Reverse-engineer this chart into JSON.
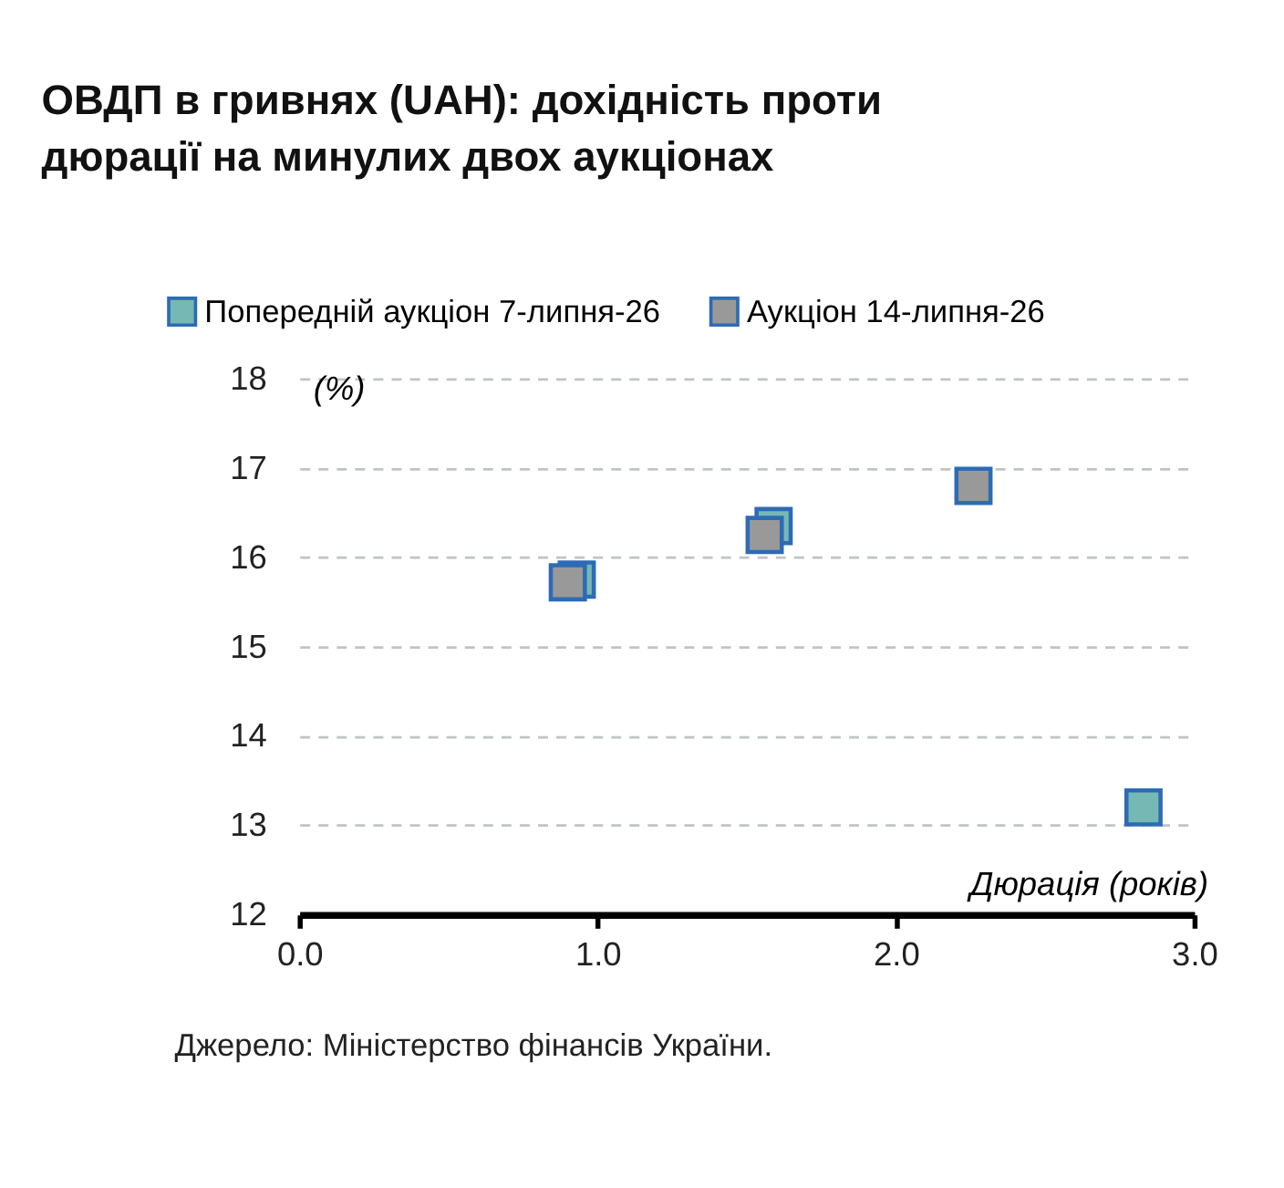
{
  "chart_data": {
    "type": "scatter",
    "title": [
      "ОВДП в гривнях (UAH): дохідність проти",
      "дюрації на минулих двох аукціонах"
    ],
    "xlabel": "Дюрація (років)",
    "ylabel": "(%)",
    "series": [
      {
        "name": "Попередній аукціон 7-липня-26",
        "color": "#76b8b4",
        "x": [
          0.93,
          1.59,
          2.83
        ],
        "values": [
          15.75,
          16.35,
          13.2
        ]
      },
      {
        "name": "Аукціон 14-липня-26",
        "color": "#999999",
        "x": [
          0.9,
          1.56,
          2.26
        ],
        "values": [
          15.72,
          16.25,
          16.8
        ]
      }
    ],
    "xlim": [
      0,
      3
    ],
    "xticks": [
      {
        "value": 0,
        "label": "0.0"
      },
      {
        "value": 1,
        "label": "1.0"
      },
      {
        "value": 2,
        "label": "2.0"
      },
      {
        "value": 3,
        "label": "3.0"
      }
    ],
    "ylim": [
      12,
      18
    ],
    "yticks": [
      12,
      13,
      14,
      15,
      16,
      17,
      18
    ],
    "grid": "y",
    "legend": "top left",
    "marker": "square",
    "annotations": [
      "Джерело: Міністерство фінансів України."
    ]
  }
}
